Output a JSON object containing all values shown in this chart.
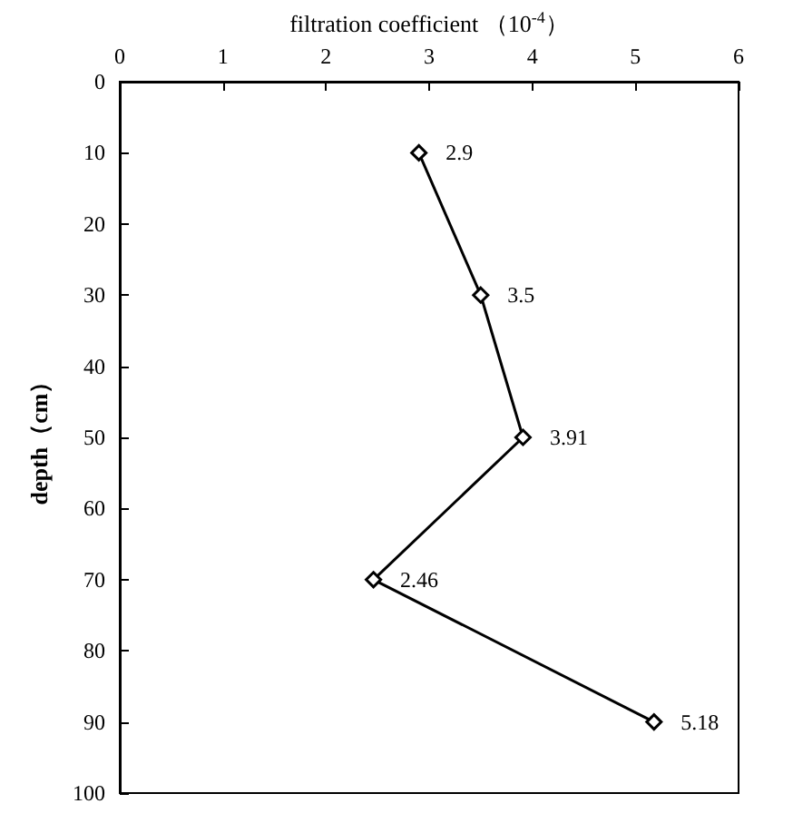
{
  "chart_data": {
    "type": "line",
    "orientation": "horizontal",
    "xlabel": "filtration coefficient （10$^{-4}$）",
    "ylabel": "depth（cm）",
    "x": [
      10,
      30,
      50,
      70,
      90
    ],
    "series": [
      {
        "color": "#000000",
        "values": [
          2.9,
          3.5,
          3.91,
          2.46,
          5.18
        ]
      }
    ],
    "data_labels": true,
    "xlim": [
      0,
      6
    ],
    "xticks": [
      0,
      1,
      2,
      3,
      4,
      5,
      6
    ],
    "ylim": [
      100,
      0
    ],
    "yticks": [
      0,
      10,
      20,
      30,
      40,
      50,
      60,
      70,
      80,
      90,
      100
    ],
    "grid": false,
    "marker": "diamond",
    "line_style": "solid"
  }
}
